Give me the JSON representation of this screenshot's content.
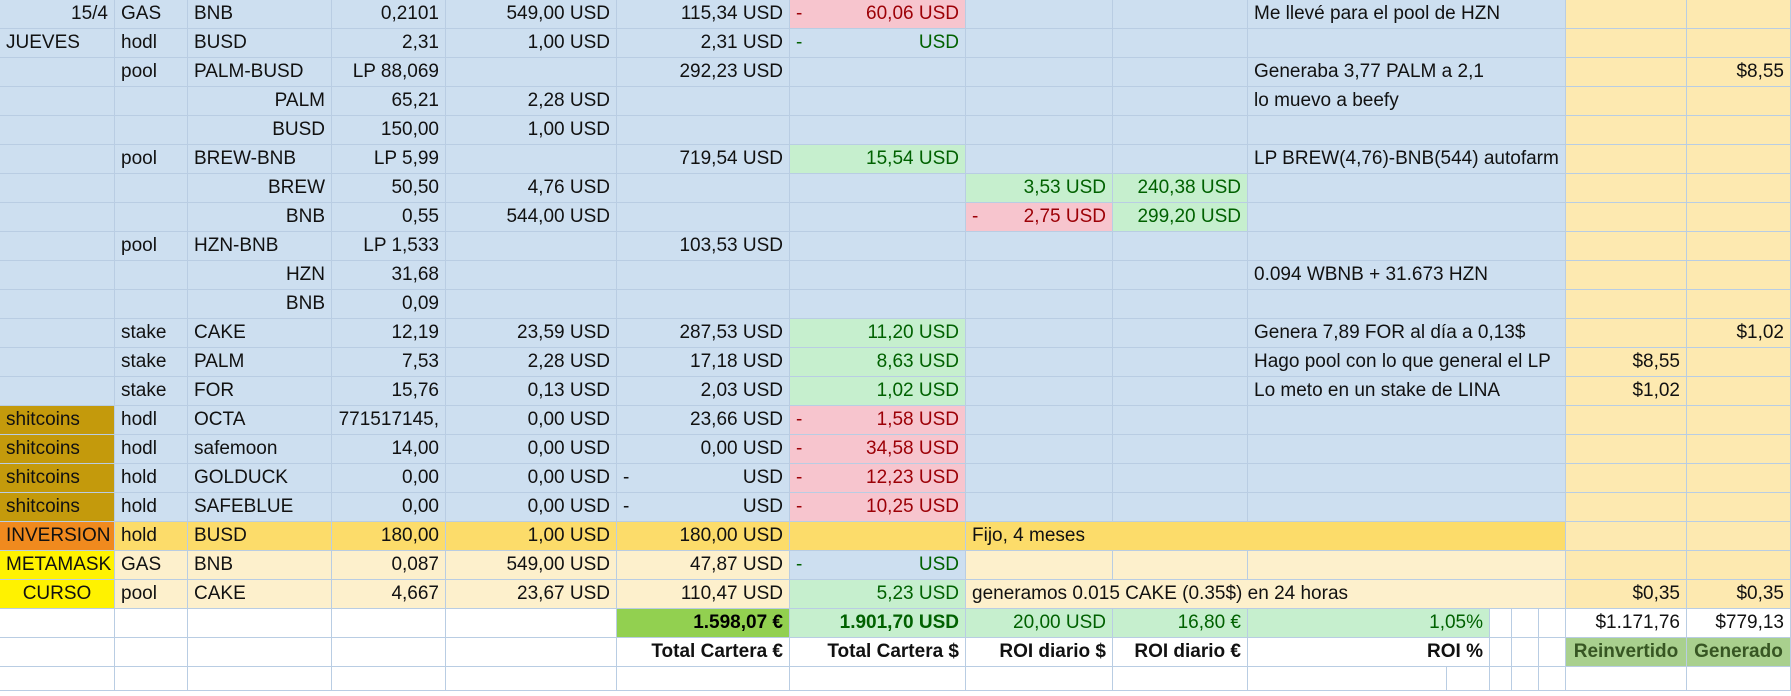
{
  "rows": [
    {
      "a": "15/4",
      "b": "GAS",
      "c": "BNB",
      "d": "0,2101",
      "e": "549,00 USD",
      "f": "115,34 USD",
      "g": "60,06 USD",
      "g_sign": "-",
      "h": "",
      "i": "",
      "j": "Me llevé para el pool de HZN",
      "m": "",
      "n": ""
    },
    {
      "a": "JUEVES",
      "b": "hodl",
      "c": "BUSD",
      "d": "2,31",
      "e": "1,00 USD",
      "f": "2,31 USD",
      "g": "USD",
      "g_sign": "-",
      "h": "",
      "i": "",
      "j": "",
      "m": "",
      "n": ""
    },
    {
      "a": "",
      "b": "pool",
      "c": "PALM-BUSD",
      "d": "LP 88,069",
      "e": "",
      "f": "292,23 USD",
      "g": "",
      "g_sign": "",
      "h": "",
      "i": "",
      "j": "Generaba 3,77 PALM a 2,1",
      "m": "",
      "n": "$8,55"
    },
    {
      "a": "",
      "b": "",
      "c": "PALM",
      "d": "65,21",
      "e": "2,28 USD",
      "f": "",
      "g": "",
      "g_sign": "",
      "h": "",
      "i": "",
      "j": "lo muevo a beefy",
      "m": "",
      "n": ""
    },
    {
      "a": "",
      "b": "",
      "c": "BUSD",
      "d": "150,00",
      "e": "1,00 USD",
      "f": "",
      "g": "",
      "g_sign": "",
      "h": "",
      "i": "",
      "j": "",
      "m": "",
      "n": ""
    },
    {
      "a": "",
      "b": "pool",
      "c": "BREW-BNB",
      "d": "LP 5,99",
      "e": "",
      "f": "719,54 USD",
      "g": "15,54 USD",
      "g_sign": "",
      "h": "",
      "i": "",
      "j": "LP BREW(4,76)-BNB(544) autofarm",
      "m": "",
      "n": ""
    },
    {
      "a": "",
      "b": "",
      "c": "BREW",
      "d": "50,50",
      "e": "4,76 USD",
      "f": "",
      "g": "",
      "g_sign": "",
      "h": "3,53 USD",
      "h_sign": "",
      "i": "240,38 USD",
      "j": "",
      "m": "",
      "n": ""
    },
    {
      "a": "",
      "b": "",
      "c": "BNB",
      "d": "0,55",
      "e": "544,00 USD",
      "f": "",
      "g": "",
      "g_sign": "",
      "h": "2,75 USD",
      "h_sign": "-",
      "i": "299,20 USD",
      "j": "",
      "m": "",
      "n": ""
    },
    {
      "a": "",
      "b": "pool",
      "c": "HZN-BNB",
      "d": "LP 1,533",
      "e": "",
      "f": "103,53 USD",
      "g": "",
      "g_sign": "",
      "h": "",
      "i": "",
      "j": "",
      "m": "",
      "n": ""
    },
    {
      "a": "",
      "b": "",
      "c": "HZN",
      "d": "31,68",
      "e": "",
      "f": "",
      "g": "",
      "g_sign": "",
      "h": "",
      "i": "",
      "j": "0.094 WBNB + 31.673 HZN",
      "m": "",
      "n": ""
    },
    {
      "a": "",
      "b": "",
      "c": "BNB",
      "d": "0,09",
      "e": "",
      "f": "",
      "g": "",
      "g_sign": "",
      "h": "",
      "i": "",
      "j": "",
      "m": "",
      "n": ""
    },
    {
      "a": "",
      "b": "stake",
      "c": "CAKE",
      "d": "12,19",
      "e": "23,59 USD",
      "f": "287,53 USD",
      "g": "11,20 USD",
      "g_sign": "",
      "h": "",
      "i": "",
      "j": "Genera 7,89 FOR al día a 0,13$",
      "m": "",
      "n": "$1,02"
    },
    {
      "a": "",
      "b": "stake",
      "c": "PALM",
      "d": "7,53",
      "e": "2,28 USD",
      "f": "17,18 USD",
      "g": "8,63 USD",
      "g_sign": "",
      "h": "",
      "i": "",
      "j": "Hago pool con lo que general el LP",
      "m": "$8,55",
      "n": ""
    },
    {
      "a": "",
      "b": "stake",
      "c": "FOR",
      "d": "15,76",
      "e": "0,13 USD",
      "f": "2,03 USD",
      "g": "1,02 USD",
      "g_sign": "",
      "h": "",
      "i": "",
      "j": "Lo meto en un stake de LINA",
      "m": "$1,02",
      "n": ""
    },
    {
      "a": "shitcoins",
      "b": "hodl",
      "c": "OCTA",
      "d": "771517145,",
      "e": "0,00 USD",
      "f": "23,66 USD",
      "g": "1,58 USD",
      "g_sign": "-",
      "h": "",
      "i": "",
      "j": "",
      "m": "",
      "n": ""
    },
    {
      "a": "shitcoins",
      "b": "hodl",
      "c": "safemoon",
      "d": "14,00",
      "e": "0,00 USD",
      "f": "0,00 USD",
      "g": "34,58 USD",
      "g_sign": "-",
      "h": "",
      "i": "",
      "j": "",
      "m": "",
      "n": ""
    },
    {
      "a": "shitcoins",
      "b": "hold",
      "c": "GOLDUCK",
      "d": "0,00",
      "e": "0,00 USD",
      "f": "USD",
      "f_sign": "-",
      "g": "12,23 USD",
      "g_sign": "-",
      "h": "",
      "i": "",
      "j": "",
      "m": "",
      "n": ""
    },
    {
      "a": "shitcoins",
      "b": "hold",
      "c": "SAFEBLUE",
      "d": "0,00",
      "e": "0,00 USD",
      "f": "USD",
      "f_sign": "-",
      "g": "10,25 USD",
      "g_sign": "-",
      "h": "",
      "i": "",
      "j": "",
      "m": "",
      "n": ""
    },
    {
      "a": "INVERSION",
      "b": "hold",
      "c": "BUSD",
      "d": "180,00",
      "e": "1,00 USD",
      "f": "180,00 USD",
      "g": "",
      "g_sign": "",
      "h": "Fijo, 4 meses",
      "i": "",
      "j": "",
      "m": "",
      "n": ""
    },
    {
      "a": "METAMASK",
      "b": "GAS",
      "c": "BNB",
      "d": "0,087",
      "e": "549,00 USD",
      "f": "47,87 USD",
      "g": "USD",
      "g_sign": "-",
      "h": "",
      "i": "",
      "j": "",
      "m": "",
      "n": ""
    },
    {
      "a": "CURSO",
      "b": "pool",
      "c": "CAKE",
      "d": "4,667",
      "e": "23,67 USD",
      "f": "110,47 USD",
      "g": "5,23 USD",
      "g_sign": "",
      "h": "generamos 0.015 CAKE (0.35$) en 24 horas",
      "i": "",
      "j": "",
      "m": "$0,35",
      "n": "$0,35"
    }
  ],
  "totals": {
    "eur": "1.598,07 €",
    "usd": "1.901,70 USD",
    "roi_usd": "20,00 USD",
    "roi_eur": "16,80 €",
    "roi_pct": "1,05%",
    "reinvested": "$1.171,76",
    "generated": "$779,13"
  },
  "headers": {
    "eur": "Total Cartera €",
    "usd": "Total Cartera $",
    "roi_usd": "ROI diario $",
    "roi_eur": "ROI diario €",
    "roi_pct": "ROI %",
    "reinvested": "Reinvertido",
    "generated": "Generado"
  },
  "colors": {
    "sheet_blue": "#cddff0",
    "gain_green": "#c6efce",
    "loss_red": "#f7c5ce",
    "gold": "#fde9b0",
    "shitcoins": "#c49a0c",
    "inversion": "#f08a1e",
    "curso": "#fff200"
  }
}
